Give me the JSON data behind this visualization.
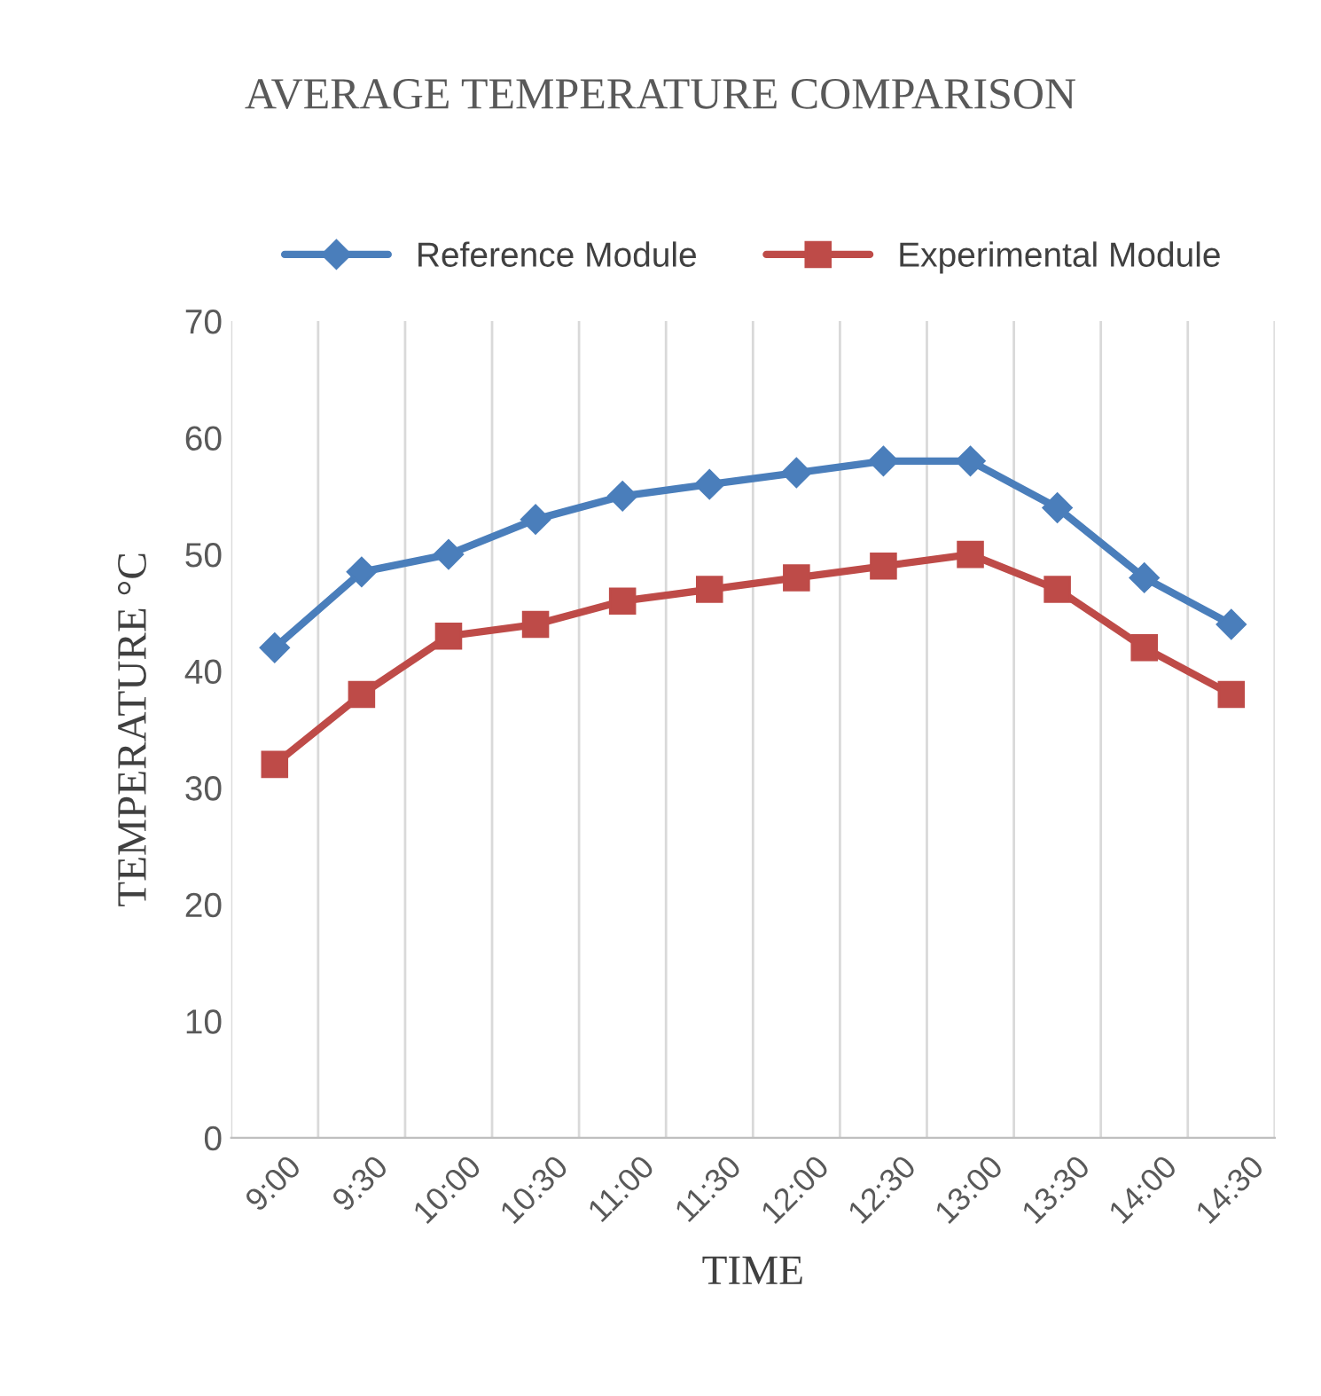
{
  "chart_data": {
    "type": "line",
    "title": "AVERAGE TEMPERATURE COMPARISON",
    "xlabel": "TIME",
    "ylabel": "TEMPERATURE °C",
    "categories": [
      "9:00",
      "9:30",
      "10:00",
      "10:30",
      "11:00",
      "11:30",
      "12:00",
      "12:30",
      "13:00",
      "13:30",
      "14:00",
      "14:30"
    ],
    "series": [
      {
        "name": "Reference Module",
        "color": "#4a7ebb",
        "marker": "diamond",
        "values": [
          42,
          48.5,
          50,
          53,
          55,
          56,
          57,
          58,
          58,
          54,
          48,
          44
        ]
      },
      {
        "name": "Experimental Module",
        "color": "#be4b48",
        "marker": "square",
        "values": [
          32,
          38,
          43,
          44,
          46,
          47,
          48,
          49,
          50,
          47,
          42,
          38
        ]
      }
    ],
    "ylim": [
      0,
      70
    ],
    "yticks": [
      0,
      10,
      20,
      30,
      40,
      50,
      60,
      70
    ],
    "grid": "x",
    "legend": "top",
    "line_style": "solid"
  }
}
